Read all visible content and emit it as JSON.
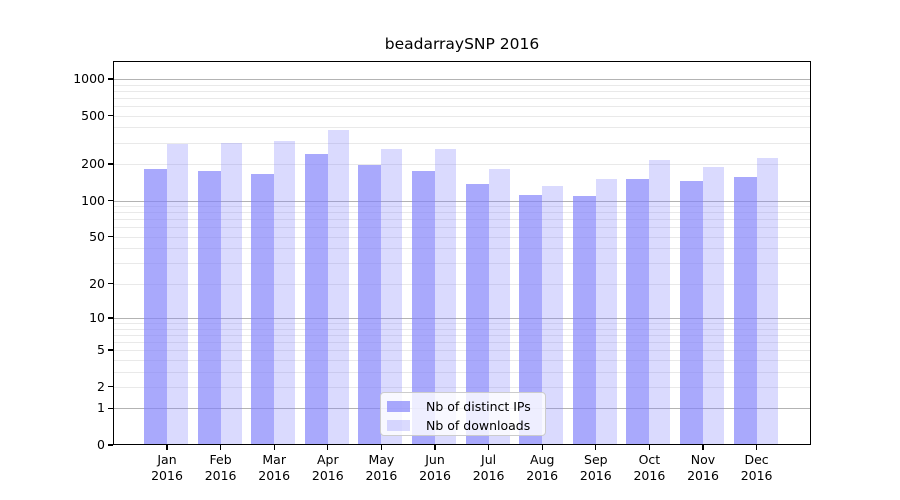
{
  "chart_data": {
    "type": "bar",
    "title": "beadarraySNP 2016",
    "categories": [
      "Jan",
      "Feb",
      "Mar",
      "Apr",
      "May",
      "Jun",
      "Jul",
      "Aug",
      "Sep",
      "Oct",
      "Nov",
      "Dec"
    ],
    "year_label": "2016",
    "series": [
      {
        "name": "Nb of distinct IPs",
        "color": "rgba(128,128,250,0.68)",
        "values": [
          183,
          175,
          165,
          243,
          195,
          176,
          136,
          111,
          109,
          150,
          145,
          156
        ]
      },
      {
        "name": "Nb of downloads",
        "color": "rgba(128,128,250,0.29)",
        "values": [
          291,
          297,
          310,
          378,
          266,
          265,
          181,
          133,
          152,
          217,
          188,
          226
        ]
      }
    ],
    "y_axis": {
      "scale": "log10(value+1)",
      "ticks": [
        0,
        1,
        2,
        5,
        10,
        20,
        50,
        100,
        200,
        500,
        1000
      ],
      "major_grid_values": [
        1,
        10,
        100,
        1000
      ],
      "ylim": [
        0,
        1400
      ]
    },
    "grid": {
      "major_color": "#b3b3b3",
      "minor_color": "#e9e9e9"
    },
    "colors": {
      "axis": "#000000",
      "background": "#ffffff"
    },
    "legend_position": "bottom-center"
  }
}
